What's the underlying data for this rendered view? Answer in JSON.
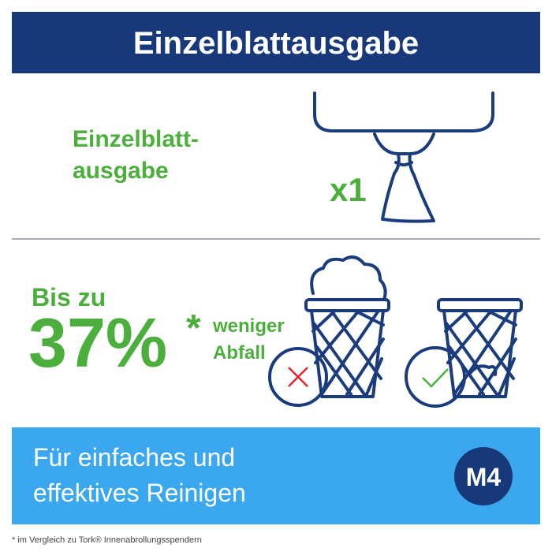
{
  "header": {
    "title": "Einzelblattausgabe"
  },
  "dispensing": {
    "label_lines": [
      "Einzelblatt-",
      "ausgabe"
    ],
    "count": "x1"
  },
  "waste": {
    "prefix": "Bis zu",
    "amount": "37%",
    "asterisk": "*",
    "suffix_lines": [
      "weniger",
      "Abfall"
    ]
  },
  "banner": {
    "lines": [
      "Für einfaches und",
      "effektives Reinigen"
    ],
    "badge": "M4"
  },
  "footnote": "* im Vergleich zu Tork® Innenabrollungsspendern"
}
